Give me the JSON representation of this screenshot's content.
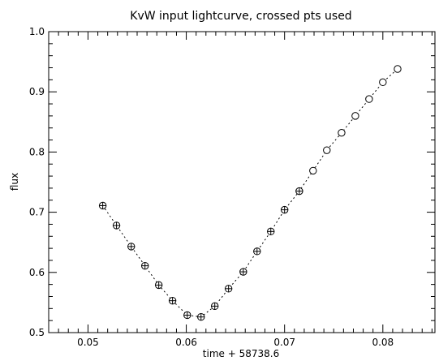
{
  "chart_data": {
    "type": "scatter",
    "title": "KvW input lightcurve, crossed pts used",
    "xlabel": "time + 58738.6",
    "ylabel": "flux",
    "xlim": [
      0.046,
      0.0853
    ],
    "ylim": [
      0.5,
      1.0
    ],
    "x_ticks": [
      0.05,
      0.06,
      0.07,
      0.08
    ],
    "x_tick_labels": [
      "0.05",
      "0.06",
      "0.07",
      "0.08"
    ],
    "y_ticks": [
      0.5,
      0.6,
      0.7,
      0.8,
      0.9,
      1.0
    ],
    "y_tick_labels": [
      "0.5",
      "0.6",
      "0.7",
      "0.8",
      "0.9",
      "1.0"
    ],
    "grid": false,
    "line_style": "dotted",
    "series": [
      {
        "points": [
          {
            "x": 0.0515,
            "y": 0.711,
            "crossed": true
          },
          {
            "x": 0.0529,
            "y": 0.678,
            "crossed": true
          },
          {
            "x": 0.0544,
            "y": 0.643,
            "crossed": true
          },
          {
            "x": 0.0558,
            "y": 0.611,
            "crossed": true
          },
          {
            "x": 0.0572,
            "y": 0.579,
            "crossed": true
          },
          {
            "x": 0.0586,
            "y": 0.553,
            "crossed": true
          },
          {
            "x": 0.0601,
            "y": 0.529,
            "crossed": true
          },
          {
            "x": 0.0615,
            "y": 0.526,
            "crossed": true
          },
          {
            "x": 0.0629,
            "y": 0.544,
            "crossed": true
          },
          {
            "x": 0.0643,
            "y": 0.573,
            "crossed": true
          },
          {
            "x": 0.0658,
            "y": 0.601,
            "crossed": true
          },
          {
            "x": 0.0672,
            "y": 0.635,
            "crossed": true
          },
          {
            "x": 0.0686,
            "y": 0.668,
            "crossed": true
          },
          {
            "x": 0.07,
            "y": 0.704,
            "crossed": true
          },
          {
            "x": 0.0715,
            "y": 0.735,
            "crossed": true
          },
          {
            "x": 0.0729,
            "y": 0.769,
            "crossed": false
          },
          {
            "x": 0.0743,
            "y": 0.803,
            "crossed": false
          },
          {
            "x": 0.0758,
            "y": 0.832,
            "crossed": false
          },
          {
            "x": 0.0772,
            "y": 0.86,
            "crossed": false
          },
          {
            "x": 0.0786,
            "y": 0.888,
            "crossed": false
          },
          {
            "x": 0.08,
            "y": 0.916,
            "crossed": false
          },
          {
            "x": 0.0815,
            "y": 0.938,
            "crossed": false
          }
        ]
      }
    ]
  }
}
